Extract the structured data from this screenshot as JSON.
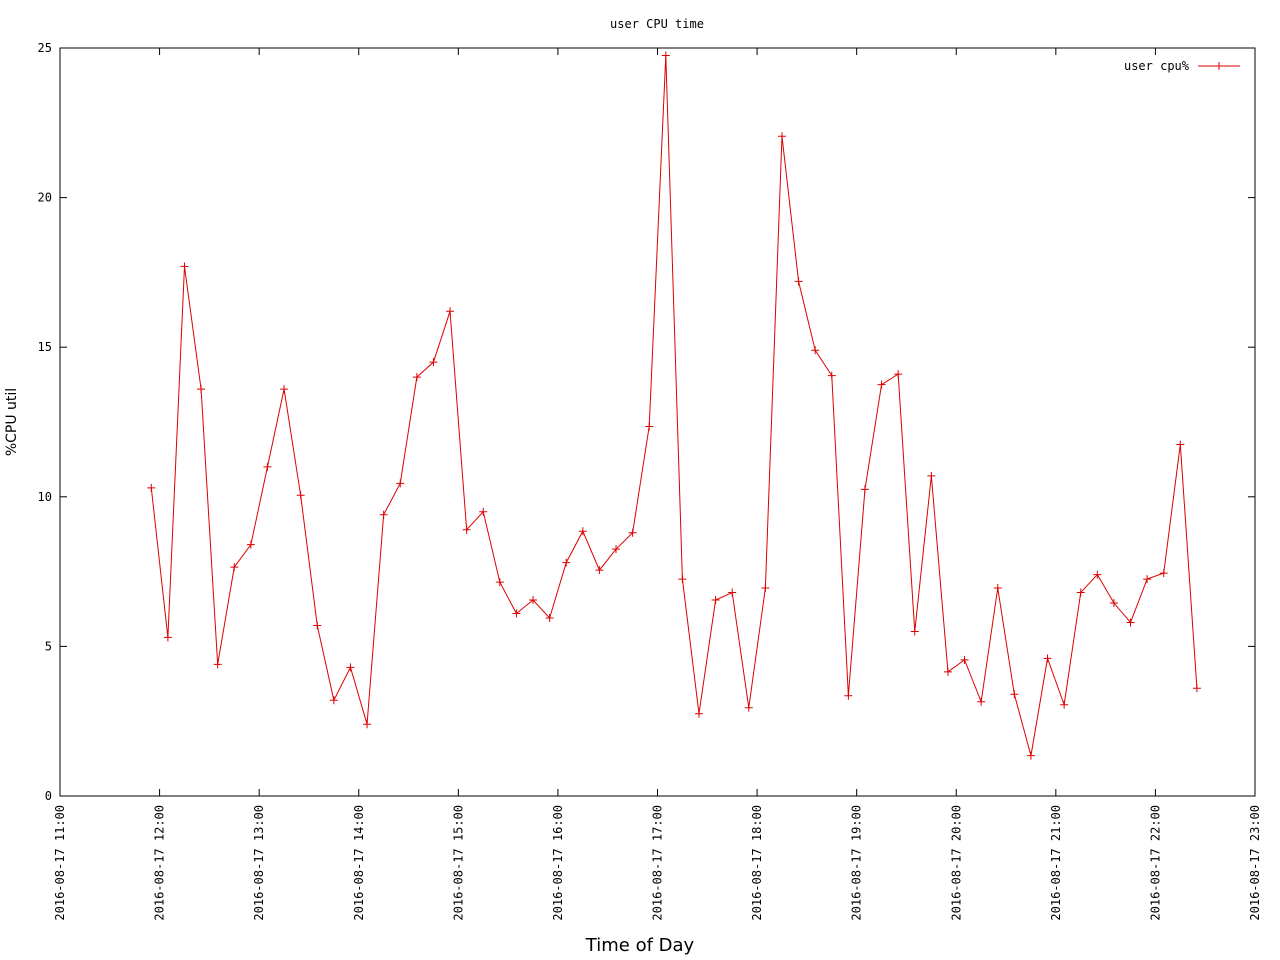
{
  "chart_data": {
    "type": "line",
    "title": "user CPU time",
    "x_label": "Time of Day",
    "y_label": "%CPU util",
    "x": [
      "2016-08-17 11:55",
      "2016-08-17 12:05",
      "2016-08-17 12:15",
      "2016-08-17 12:25",
      "2016-08-17 12:35",
      "2016-08-17 12:45",
      "2016-08-17 12:55",
      "2016-08-17 13:05",
      "2016-08-17 13:15",
      "2016-08-17 13:25",
      "2016-08-17 13:35",
      "2016-08-17 13:45",
      "2016-08-17 13:55",
      "2016-08-17 14:05",
      "2016-08-17 14:15",
      "2016-08-17 14:25",
      "2016-08-17 14:35",
      "2016-08-17 14:45",
      "2016-08-17 14:55",
      "2016-08-17 15:05",
      "2016-08-17 15:15",
      "2016-08-17 15:25",
      "2016-08-17 15:35",
      "2016-08-17 15:45",
      "2016-08-17 15:55",
      "2016-08-17 16:05",
      "2016-08-17 16:15",
      "2016-08-17 16:25",
      "2016-08-17 16:35",
      "2016-08-17 16:45",
      "2016-08-17 16:55",
      "2016-08-17 17:05",
      "2016-08-17 17:15",
      "2016-08-17 17:25",
      "2016-08-17 17:35",
      "2016-08-17 17:45",
      "2016-08-17 17:55",
      "2016-08-17 18:05",
      "2016-08-17 18:15",
      "2016-08-17 18:25",
      "2016-08-17 18:35",
      "2016-08-17 18:45",
      "2016-08-17 18:55",
      "2016-08-17 19:05",
      "2016-08-17 19:15",
      "2016-08-17 19:25",
      "2016-08-17 19:35",
      "2016-08-17 19:45",
      "2016-08-17 19:55",
      "2016-08-17 20:05",
      "2016-08-17 20:15",
      "2016-08-17 20:25",
      "2016-08-17 20:35",
      "2016-08-17 20:45",
      "2016-08-17 20:55",
      "2016-08-17 21:05",
      "2016-08-17 21:15",
      "2016-08-17 21:25",
      "2016-08-17 21:35",
      "2016-08-17 21:45",
      "2016-08-17 21:55",
      "2016-08-17 22:05",
      "2016-08-17 22:15",
      "2016-08-17 22:25"
    ],
    "series": [
      {
        "name": "user cpu%",
        "color": "#dd0000",
        "values": [
          10.3,
          5.3,
          17.7,
          13.6,
          4.4,
          7.65,
          8.4,
          11.0,
          13.6,
          10.05,
          5.7,
          3.2,
          4.3,
          2.4,
          9.4,
          10.45,
          14.0,
          14.5,
          16.2,
          8.9,
          9.5,
          7.15,
          6.1,
          6.55,
          5.95,
          7.8,
          8.85,
          7.55,
          8.25,
          8.8,
          12.35,
          24.75,
          7.25,
          2.75,
          6.55,
          6.8,
          2.95,
          6.95,
          22.05,
          17.2,
          14.9,
          14.05,
          3.35,
          10.25,
          13.75,
          14.1,
          5.5,
          10.7,
          4.15,
          4.55,
          3.15,
          6.95,
          3.4,
          1.35,
          4.6,
          3.05,
          6.8,
          7.4,
          6.45,
          5.8,
          7.25,
          7.45,
          11.75,
          3.6
        ]
      }
    ],
    "xlim": [
      "2016-08-17 11:00",
      "2016-08-17 23:00"
    ],
    "xticks": [
      "2016-08-17 11:00",
      "2016-08-17 12:00",
      "2016-08-17 13:00",
      "2016-08-17 14:00",
      "2016-08-17 15:00",
      "2016-08-17 16:00",
      "2016-08-17 17:00",
      "2016-08-17 18:00",
      "2016-08-17 19:00",
      "2016-08-17 20:00",
      "2016-08-17 21:00",
      "2016-08-17 22:00",
      "2016-08-17 23:00"
    ],
    "ylim": [
      0,
      25
    ],
    "yticks": [
      0,
      5,
      10,
      15,
      20,
      25
    ],
    "grid": false,
    "legend": "top-right"
  }
}
